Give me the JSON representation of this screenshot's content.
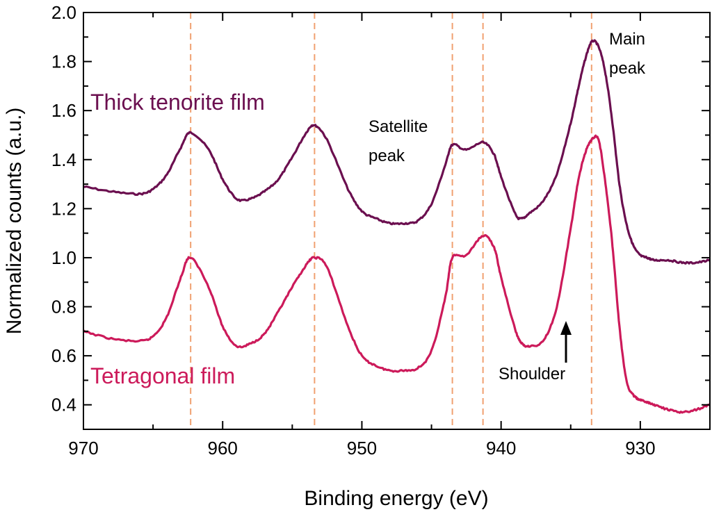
{
  "chart_data": {
    "type": "line",
    "title": "",
    "xlabel": "Binding energy (eV)",
    "ylabel": "Normalized counts (a.u.)",
    "xlim": [
      970,
      925
    ],
    "ylim": [
      0.3,
      2.0
    ],
    "x_ticks": [
      970,
      960,
      950,
      940,
      930
    ],
    "x_tick_labels": [
      "970",
      "960",
      "950",
      "940",
      "930"
    ],
    "y_ticks": [
      0.4,
      0.6,
      0.8,
      1.0,
      1.2,
      1.4,
      1.6,
      1.8,
      2.0
    ],
    "y_tick_labels": [
      "0.4",
      "0.6",
      "0.8",
      "1.0",
      "1.2",
      "1.4",
      "1.6",
      "1.8",
      "2.0"
    ],
    "reference_lines_x": [
      962.3,
      953.4,
      943.5,
      941.3,
      933.5
    ],
    "reference_line_color": "#f0a070",
    "series": [
      {
        "name": "Thick tenorite film",
        "color": "#6b0f4f",
        "x": [
          970,
          968,
          966,
          965,
          964,
          963,
          962.3,
          961,
          960,
          959,
          958,
          957,
          956,
          955,
          954,
          953.4,
          952.5,
          951,
          950,
          949,
          948,
          947,
          946,
          945,
          944,
          943.5,
          942.5,
          941.3,
          940.5,
          940,
          939,
          938.5,
          938,
          937,
          936,
          935,
          934.5,
          934,
          933.5,
          933,
          932.5,
          932,
          931.5,
          931,
          930.5,
          930,
          929.5,
          929,
          928,
          927,
          926,
          925
        ],
        "values": [
          1.29,
          1.27,
          1.26,
          1.28,
          1.34,
          1.45,
          1.51,
          1.44,
          1.32,
          1.24,
          1.24,
          1.27,
          1.32,
          1.41,
          1.51,
          1.54,
          1.48,
          1.28,
          1.19,
          1.16,
          1.14,
          1.14,
          1.15,
          1.22,
          1.38,
          1.46,
          1.44,
          1.47,
          1.42,
          1.33,
          1.18,
          1.16,
          1.18,
          1.23,
          1.34,
          1.55,
          1.68,
          1.8,
          1.88,
          1.86,
          1.75,
          1.55,
          1.3,
          1.14,
          1.05,
          1.01,
          1.0,
          0.99,
          0.99,
          0.98,
          0.98,
          0.99
        ]
      },
      {
        "name": "Tetragonal film",
        "color": "#cc1a5a",
        "x": [
          970,
          968,
          966,
          965,
          964,
          963,
          962.3,
          961,
          960,
          959,
          958,
          957,
          956,
          955,
          954,
          953.4,
          952.5,
          951,
          950,
          949,
          948,
          947,
          946,
          945,
          944,
          943.5,
          942.5,
          941.3,
          940.5,
          940,
          939,
          938.5,
          938,
          937,
          936,
          935,
          934.5,
          934,
          933.5,
          933,
          932.5,
          932,
          931.5,
          931,
          930.5,
          930,
          929.5,
          929,
          928,
          927,
          926,
          925
        ],
        "values": [
          0.7,
          0.67,
          0.66,
          0.68,
          0.76,
          0.92,
          1.0,
          0.88,
          0.72,
          0.64,
          0.65,
          0.69,
          0.78,
          0.88,
          0.97,
          1.0,
          0.96,
          0.72,
          0.6,
          0.56,
          0.54,
          0.54,
          0.55,
          0.62,
          0.84,
          1.0,
          1.01,
          1.09,
          1.04,
          0.92,
          0.71,
          0.65,
          0.64,
          0.66,
          0.8,
          1.12,
          1.3,
          1.42,
          1.48,
          1.48,
          1.3,
          1.05,
          0.72,
          0.5,
          0.44,
          0.42,
          0.41,
          0.4,
          0.38,
          0.37,
          0.38,
          0.4
        ]
      }
    ],
    "annotations": {
      "satellite_line1": "Satellite",
      "satellite_line2": "peak",
      "main_line1": "Main",
      "main_line2": "peak",
      "shoulder": "Shoulder"
    }
  }
}
